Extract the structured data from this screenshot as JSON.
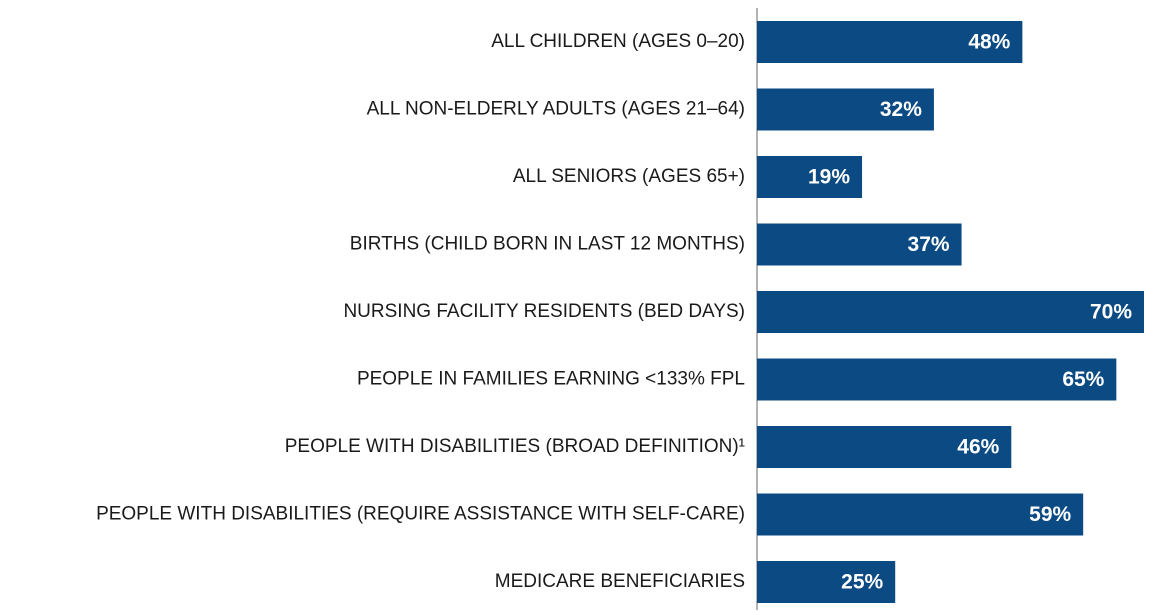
{
  "chart_data": {
    "type": "bar",
    "orientation": "horizontal",
    "categories": [
      "ALL CHILDREN (AGES 0–20)",
      "ALL NON-ELDERLY ADULTS (AGES 21–64)",
      "ALL SENIORS (AGES 65+)",
      "BIRTHS (CHILD BORN IN LAST 12 MONTHS)",
      "NURSING FACILITY RESIDENTS (BED DAYS)",
      "PEOPLE IN FAMILIES EARNING <133% FPL",
      "PEOPLE WITH DISABILITIES (BROAD DEFINITION)¹",
      "PEOPLE WITH DISABILITIES (REQUIRE ASSISTANCE WITH SELF-CARE)",
      "MEDICARE BENEFICIARIES"
    ],
    "values": [
      48,
      32,
      19,
      37,
      70,
      65,
      46,
      59,
      25
    ],
    "value_labels": [
      "48%",
      "32%",
      "19%",
      "37%",
      "70%",
      "65%",
      "46%",
      "59%",
      "25%"
    ],
    "color": "#0b4a82",
    "xlim": [
      0,
      70
    ]
  }
}
